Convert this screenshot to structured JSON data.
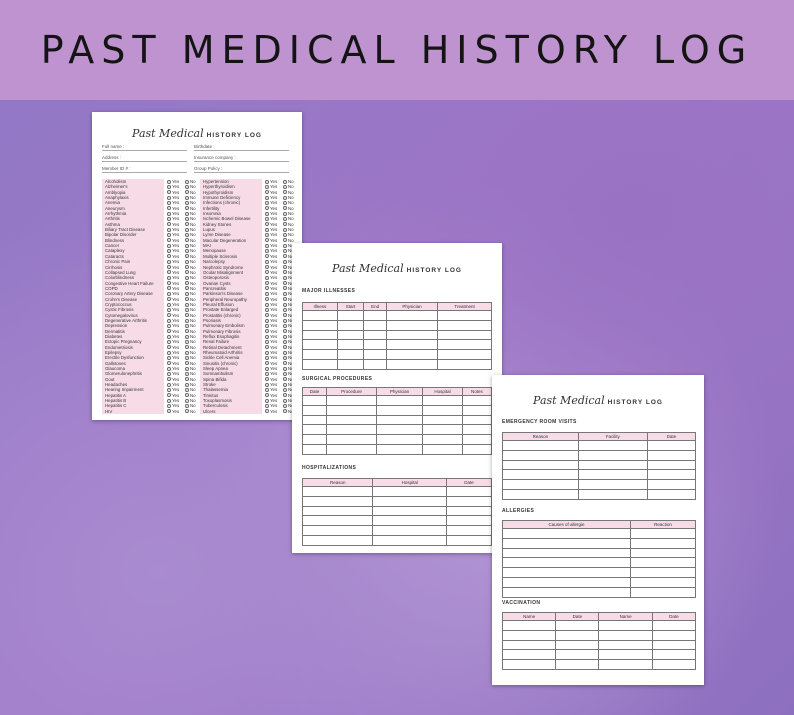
{
  "banner": {
    "title": "PAST MEDICAL HISTORY LOG"
  },
  "doc_title": {
    "script": "Past Medical",
    "caps": "HISTORY LOG"
  },
  "page1": {
    "fields": {
      "full_name": "Full name :",
      "birthdate": "Birthdate :",
      "address": "Address :",
      "insurance": "Insurance company :",
      "member_id": "Member ID # :",
      "group_policy": "Group Policy :"
    },
    "yes": "Yes",
    "no": "No",
    "conditions_left": [
      "Alcoholism",
      "Alzheimer's",
      "Amblyopia",
      "Anaphylaxis",
      "Anemia",
      "Aneurysm",
      "Arrhythmia",
      "Arthritis",
      "Asthma",
      "Biliary Tract Disease",
      "Bipolar Disorder",
      "Blindness",
      "Cancer",
      "Cataplexy",
      "Cataracts",
      "Chronic Pain",
      "Cirrhosis",
      "Collapsed Lung",
      "Colorblindness",
      "Congestive Heart Failure",
      "COPD",
      "Coronary Artery Disease",
      "Crohn's Disease",
      "Cryptococcus",
      "Cystic Fibrosis",
      "Cytomegalovirus",
      "Degenerative Arthritis",
      "Depression",
      "Dermatitis",
      "Diabetes",
      "Ectopic Pregnancy",
      "Endometriosis",
      "Epilepsy",
      "Erectile Dysfunction",
      "Gallstones",
      "Glaucoma",
      "Glomerulonephritis",
      "Gout",
      "Headaches",
      "Hearing Impairment",
      "Hepatitis A",
      "Hepatitis B",
      "Hepatitis C",
      "HIV"
    ],
    "conditions_right": [
      "Hypertension",
      "Hyperthyroidism",
      "Hypothyroidism",
      "Immune Deficiency",
      "Infections (chronic)",
      "Infertility",
      "Insomnia",
      "Ischemic Bowel Disease",
      "Kidney Stones",
      "Lupus",
      "Lyme Disease",
      "Macular Degeneration",
      "MAI",
      "Menopause",
      "Multiple Sclerosis",
      "Narcolepsy",
      "Nephrotic Syndrome",
      "Ocular Misalignment",
      "Osteoporosis",
      "Ovarian Cysts",
      "Pancreatitis",
      "Parkinson's Disease",
      "Peripheral Neuropathy",
      "Pleural Effusion",
      "Prostate Enlarged",
      "Prostatitis (chronic)",
      "Psoriasis",
      "Pulmonary Embolism",
      "Pulmonary Fibrosis",
      "Reflux Esophagitis",
      "Renal Failure",
      "Retinal Detachment",
      "Rheumatoid Arthritis",
      "Sickle Cell Anemia",
      "Sinusitis (chronic)",
      "Sleep Apnea",
      "Somnambulism",
      "Spina Bifida",
      "Stroke",
      "Thalassemia",
      "Tinnitus",
      "Toxoplasmosis",
      "Tuberculosis",
      "Ulcers"
    ]
  },
  "page2": {
    "major_illnesses": {
      "title": "MAJOR ILLNESSES",
      "columns": [
        "Illness",
        "Start",
        "End",
        "Physician",
        "Treatment"
      ]
    },
    "surgical": {
      "title": "SURGICAL PROCEDURES",
      "columns": [
        "Date",
        "Procedure",
        "Physician",
        "Hospital",
        "Notes"
      ]
    },
    "hospitalizations": {
      "title": "HOSPITALIZATIONS",
      "columns": [
        "Reason",
        "Hospital",
        "Date"
      ]
    }
  },
  "page3": {
    "er_visits": {
      "title": "EMERGENCY ROOM VISITS",
      "columns": [
        "Reason",
        "Facility",
        "Date"
      ]
    },
    "allergies": {
      "title": "ALLERGIES",
      "columns": [
        "Causes of allergie",
        "Reaction"
      ]
    },
    "vaccination": {
      "title": "VACCINATION",
      "columns": [
        "Name",
        "Date",
        "Name",
        "Date"
      ]
    }
  },
  "colors": {
    "banner": "#be93cf",
    "table_header": "#f7dce8",
    "background": "#9a7cc8"
  }
}
